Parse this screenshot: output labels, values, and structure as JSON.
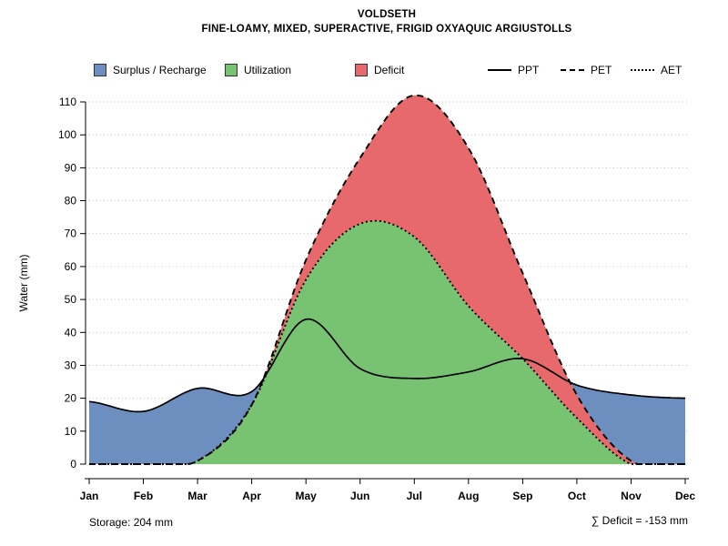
{
  "title": "VOLDSETH",
  "subtitle": "FINE-LOAMY, MIXED, SUPERACTIVE, FRIGID OXYAQUIC ARGIUSTOLLS",
  "legend": {
    "areas": [
      {
        "label": "Surplus / Recharge",
        "color": "#6D8FC0"
      },
      {
        "label": "Utilization",
        "color": "#77C371"
      },
      {
        "label": "Deficit",
        "color": "#E8696B"
      }
    ],
    "lines": [
      {
        "label": "PPT",
        "style": "solid"
      },
      {
        "label": "PET",
        "style": "dashed"
      },
      {
        "label": "AET",
        "style": "dotted"
      }
    ]
  },
  "footer": {
    "storage": "Storage: 204 mm",
    "deficit": "∑ Deficit = -153 mm"
  },
  "chart_data": {
    "type": "area",
    "title": "VOLDSETH",
    "subtitle": "FINE-LOAMY, MIXED, SUPERACTIVE, FRIGID OXYAQUIC ARGIUSTOLLS",
    "categories": [
      "Jan",
      "Feb",
      "Mar",
      "Apr",
      "May",
      "Jun",
      "Jul",
      "Aug",
      "Sep",
      "Oct",
      "Nov",
      "Dec"
    ],
    "xlabel": "",
    "ylabel": "Water (mm)",
    "ylim": [
      0,
      110
    ],
    "yticks": [
      0,
      10,
      20,
      30,
      40,
      50,
      60,
      70,
      80,
      90,
      100,
      110
    ],
    "grid": "horizontal dotted",
    "legend_position": "top",
    "series": [
      {
        "name": "PPT",
        "style": "solid",
        "color": "#000000",
        "values": [
          19,
          16,
          23,
          22,
          44,
          29,
          26,
          28,
          32,
          24,
          21,
          20
        ]
      },
      {
        "name": "PET",
        "style": "dashed",
        "color": "#000000",
        "values": [
          0,
          0,
          1,
          18,
          62,
          93,
          112,
          96,
          58,
          21,
          1,
          0
        ]
      },
      {
        "name": "AET",
        "style": "dotted",
        "color": "#000000",
        "values": [
          0,
          0,
          1,
          18,
          56,
          73,
          69,
          48,
          32,
          14,
          0,
          0
        ]
      }
    ],
    "areas": [
      {
        "name": "Surplus / Recharge",
        "color": "#6D8FC0",
        "region": "between PET and PPT where PPT > PET"
      },
      {
        "name": "Utilization",
        "color": "#77C371",
        "region": "between 0 and AET"
      },
      {
        "name": "Deficit",
        "color": "#E8696B",
        "region": "between AET and PET"
      }
    ],
    "annotations": {
      "storage": "Storage: 204 mm",
      "total_deficit": "∑ Deficit = -153 mm"
    }
  }
}
